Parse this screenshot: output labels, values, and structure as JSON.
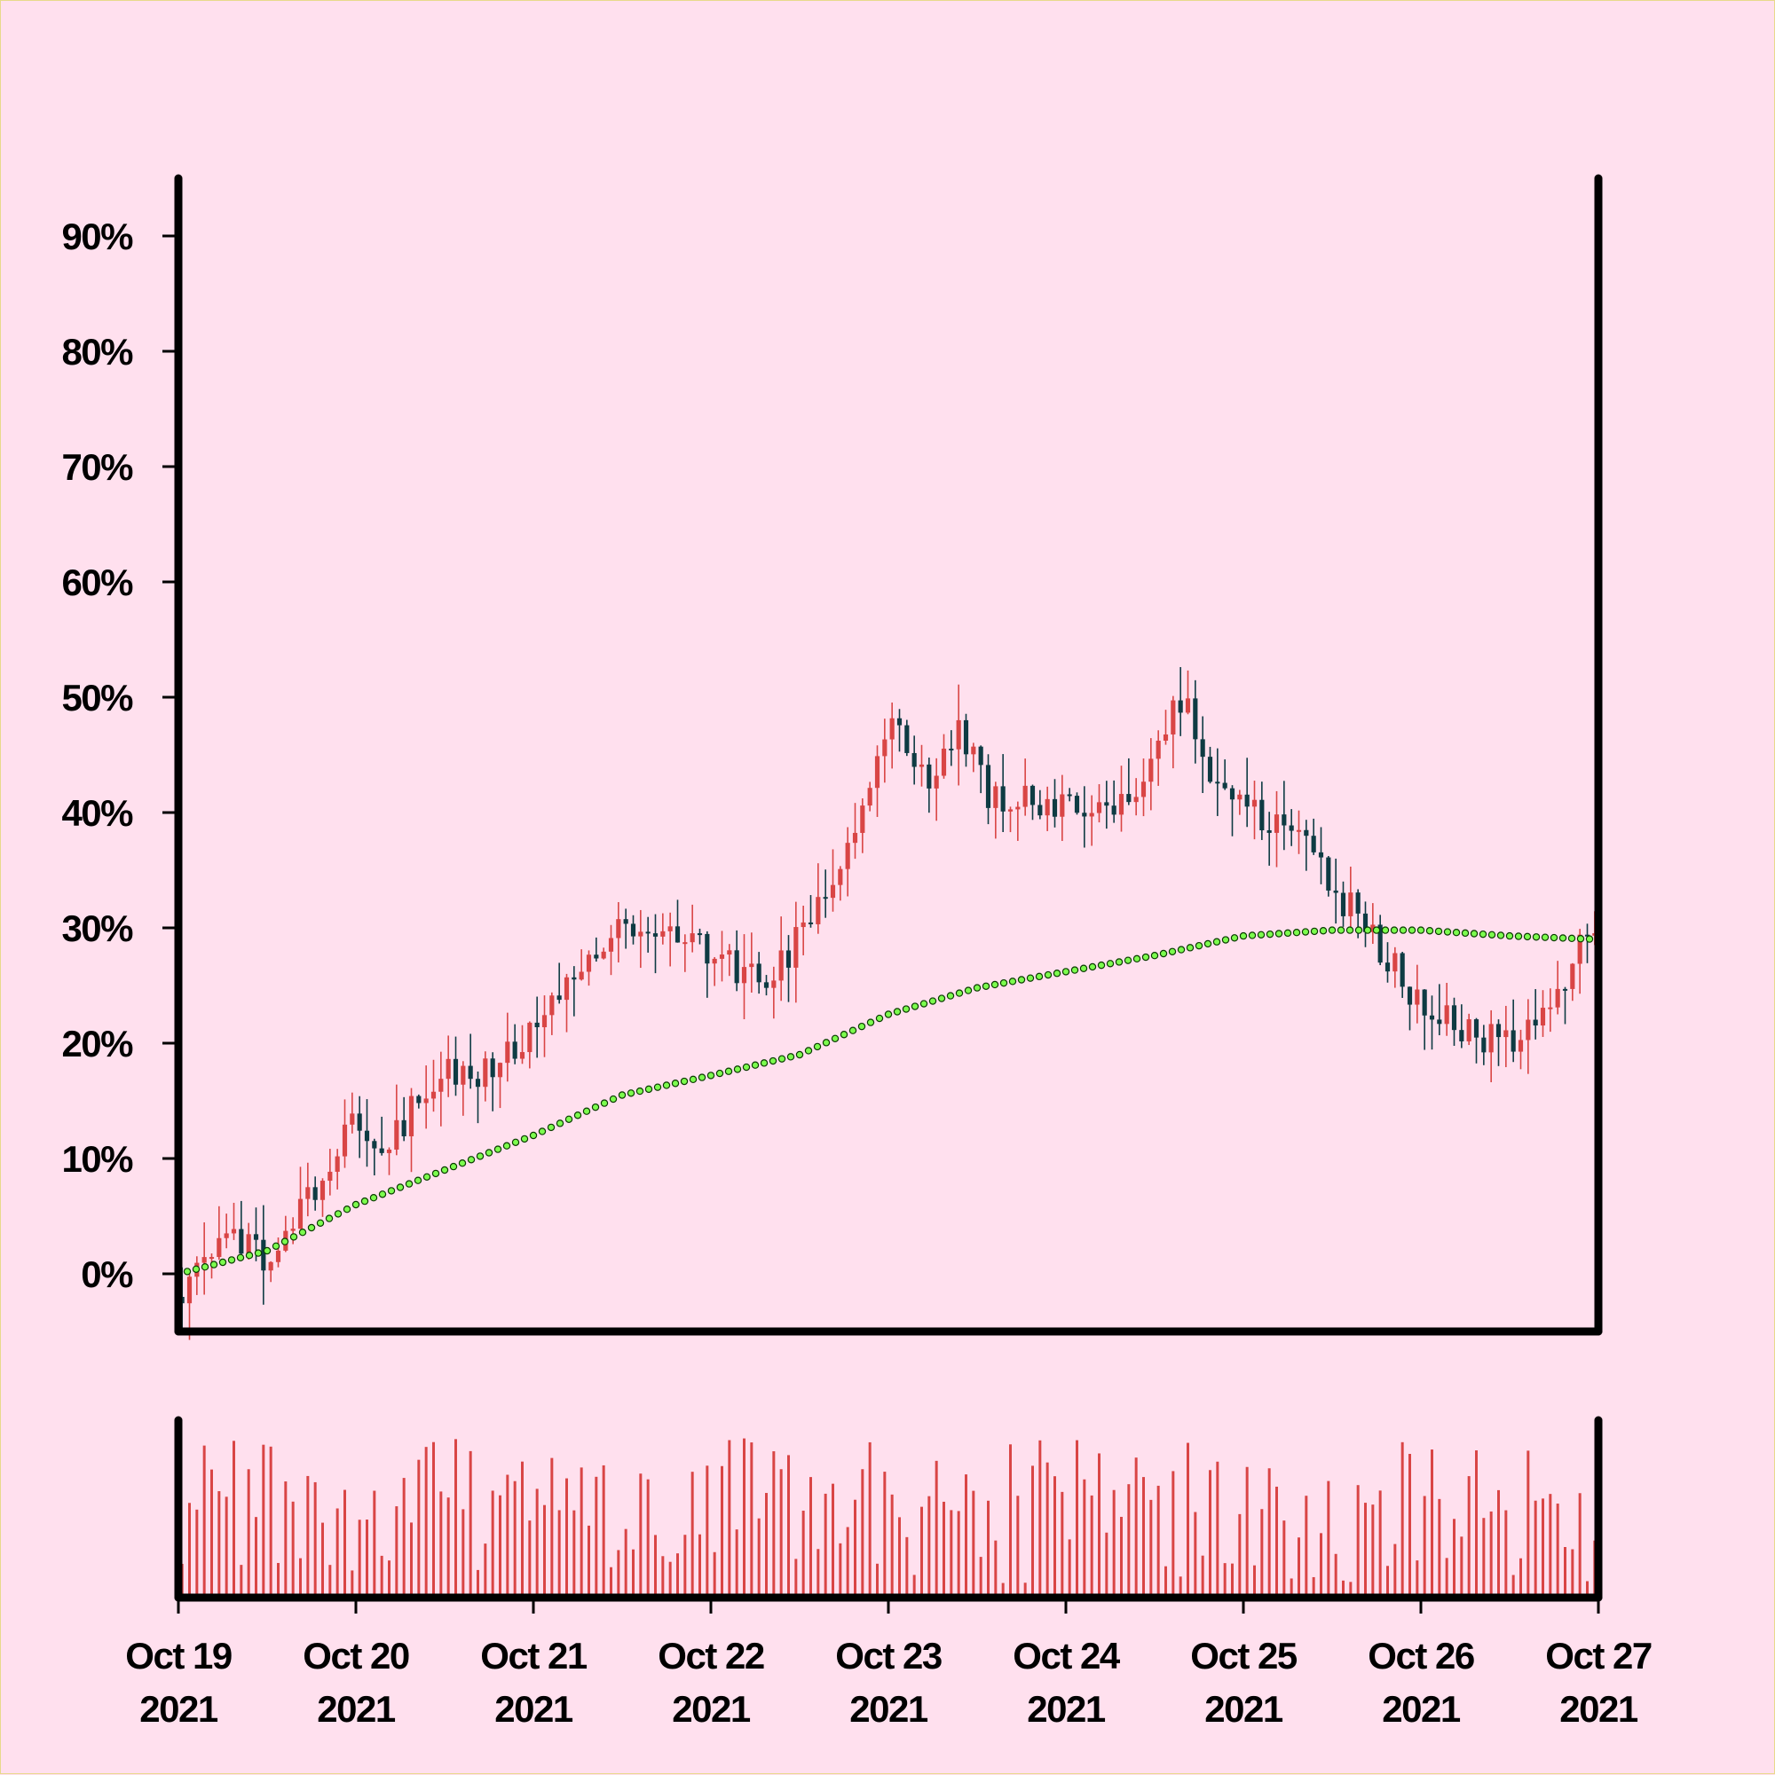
{
  "chart_data": {
    "type": "candlestick",
    "yformat": "percent",
    "ylim": [
      -5,
      95
    ],
    "y_ticks": [
      "0%",
      "10%",
      "20%",
      "30%",
      "40%",
      "50%",
      "60%",
      "70%",
      "80%",
      "90%"
    ],
    "x_range": [
      "2021-10-19",
      "2021-10-27"
    ],
    "x_ticks": [
      {
        "date": "2021-10-19",
        "line1": "Oct 19",
        "line2": "2021"
      },
      {
        "date": "2021-10-20",
        "line1": "Oct 20",
        "line2": "2021"
      },
      {
        "date": "2021-10-21",
        "line1": "Oct 21",
        "line2": "2021"
      },
      {
        "date": "2021-10-22",
        "line1": "Oct 22",
        "line2": "2021"
      },
      {
        "date": "2021-10-23",
        "line1": "Oct 23",
        "line2": "2021"
      },
      {
        "date": "2021-10-24",
        "line1": "Oct 24",
        "line2": "2021"
      },
      {
        "date": "2021-10-25",
        "line1": "Oct 25",
        "line2": "2021"
      },
      {
        "date": "2021-10-26",
        "line1": "Oct 26",
        "line2": "2021"
      },
      {
        "date": "2021-10-27",
        "line1": "Oct 27",
        "line2": "2021"
      }
    ],
    "candle_interval_hours": 1,
    "price_path": [
      [
        "2021-10-19T00:00",
        -2
      ],
      [
        "2021-10-19T08:00",
        4
      ],
      [
        "2021-10-19T12:00",
        1
      ],
      [
        "2021-10-19T19:00",
        7
      ],
      [
        "2021-10-20T00:00",
        14
      ],
      [
        "2021-10-20T04:00",
        10
      ],
      [
        "2021-10-20T12:00",
        18
      ],
      [
        "2021-10-20T17:00",
        17
      ],
      [
        "2021-10-21T00:00",
        21
      ],
      [
        "2021-10-21T12:00",
        31
      ],
      [
        "2021-10-21T17:00",
        29
      ],
      [
        "2021-10-21T23:00",
        28
      ],
      [
        "2021-10-22T08:00",
        25
      ],
      [
        "2021-10-22T16:00",
        33
      ],
      [
        "2021-10-22T22:00",
        43
      ],
      [
        "2021-10-23T02:00",
        48
      ],
      [
        "2021-10-23T06:00",
        41
      ],
      [
        "2021-10-23T10:00",
        48
      ],
      [
        "2021-10-23T14:00",
        41
      ],
      [
        "2021-10-23T22:00",
        41
      ],
      [
        "2021-10-24T04:00",
        39
      ],
      [
        "2021-10-24T12:00",
        44
      ],
      [
        "2021-10-24T16:00",
        50
      ],
      [
        "2021-10-24T22:00",
        41
      ],
      [
        "2021-10-25T04:00",
        39
      ],
      [
        "2021-10-25T10:00",
        36
      ],
      [
        "2021-10-25T18:00",
        29
      ],
      [
        "2021-10-26T00:00",
        24
      ],
      [
        "2021-10-26T06:00",
        21
      ],
      [
        "2021-10-26T14:00",
        20
      ],
      [
        "2021-10-26T20:00",
        25
      ],
      [
        "2021-10-27T00:00",
        31
      ]
    ],
    "moving_average": [
      [
        "2021-10-19T00:00",
        0
      ],
      [
        "2021-10-19T12:00",
        2
      ],
      [
        "2021-10-20T00:00",
        6
      ],
      [
        "2021-10-20T12:00",
        9
      ],
      [
        "2021-10-21T00:00",
        12
      ],
      [
        "2021-10-21T12:00",
        15.5
      ],
      [
        "2021-10-22T00:00",
        17.2
      ],
      [
        "2021-10-22T12:00",
        19
      ],
      [
        "2021-10-23T00:00",
        22.5
      ],
      [
        "2021-10-23T12:00",
        24.8
      ],
      [
        "2021-10-24T00:00",
        26.2
      ],
      [
        "2021-10-24T12:00",
        27.6
      ],
      [
        "2021-10-25T00:00",
        29.3
      ],
      [
        "2021-10-25T12:00",
        29.8
      ],
      [
        "2021-10-26T00:00",
        29.8
      ],
      [
        "2021-10-26T12:00",
        29.3
      ],
      [
        "2021-10-27T00:00",
        29
      ]
    ],
    "volume_level": "relative",
    "grid": false,
    "legend": "none",
    "colors": {
      "background": "#FFE0EE",
      "up": "#D94545",
      "down": "#0E3B43",
      "volume": "#D94545",
      "moving_average": "#7CFC4E",
      "axis": "#000000"
    }
  }
}
